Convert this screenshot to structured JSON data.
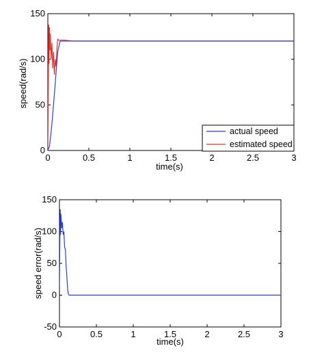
{
  "chart_data": [
    {
      "type": "line",
      "xlabel": "time(s)",
      "ylabel": "speed(rad/s)",
      "xlim": [
        0,
        3
      ],
      "ylim": [
        0,
        150
      ],
      "xticks": [
        "0",
        "0.5",
        "1",
        "1.5",
        "2",
        "2.5",
        "3"
      ],
      "yticks": [
        "0",
        "50",
        "100",
        "150"
      ],
      "legend_position": "bottom-right",
      "grid": false,
      "series": [
        {
          "name": "actual speed",
          "color": "#2a3fd6",
          "x": [
            0,
            0.02,
            0.04,
            0.06,
            0.08,
            0.1,
            0.12,
            0.15,
            0.2,
            0.3,
            0.5,
            1,
            3
          ],
          "y": [
            0,
            5,
            20,
            40,
            62,
            85,
            108,
            120,
            120,
            120,
            120,
            120,
            120
          ]
        },
        {
          "name": "estimated speed",
          "color": "#e8302a",
          "x": [
            0,
            0.005,
            0.01,
            0.015,
            0.02,
            0.025,
            0.03,
            0.04,
            0.05,
            0.06,
            0.07,
            0.08,
            0.09,
            0.1,
            0.11,
            0.12,
            0.13,
            0.15,
            0.2,
            0.3,
            0.4,
            0.6,
            1,
            2,
            3
          ],
          "y": [
            0,
            60,
            138,
            95,
            135,
            110,
            128,
            100,
            118,
            90,
            108,
            83,
            100,
            92,
            110,
            122,
            121,
            121,
            121,
            120,
            120,
            120,
            120,
            120,
            120
          ]
        }
      ]
    },
    {
      "type": "line",
      "xlabel": "time(s)",
      "ylabel": "speed error(rad/s)",
      "xlim": [
        0,
        3
      ],
      "ylim": [
        -50,
        150
      ],
      "xticks": [
        "0",
        "0.5",
        "1",
        "1.5",
        "2",
        "2.5",
        "3"
      ],
      "yticks": [
        "-50",
        "0",
        "50",
        "100",
        "150"
      ],
      "grid": false,
      "series": [
        {
          "color": "#2a3fd6",
          "x": [
            0,
            0.005,
            0.01,
            0.015,
            0.02,
            0.03,
            0.04,
            0.05,
            0.06,
            0.07,
            0.08,
            0.09,
            0.1,
            0.11,
            0.12,
            0.13,
            0.2,
            0.5,
            1,
            2,
            3
          ],
          "y": [
            15,
            80,
            135,
            95,
            128,
            105,
            115,
            95,
            100,
            75,
            72,
            45,
            30,
            10,
            2,
            0,
            0,
            0,
            0,
            0,
            0
          ]
        }
      ]
    }
  ]
}
